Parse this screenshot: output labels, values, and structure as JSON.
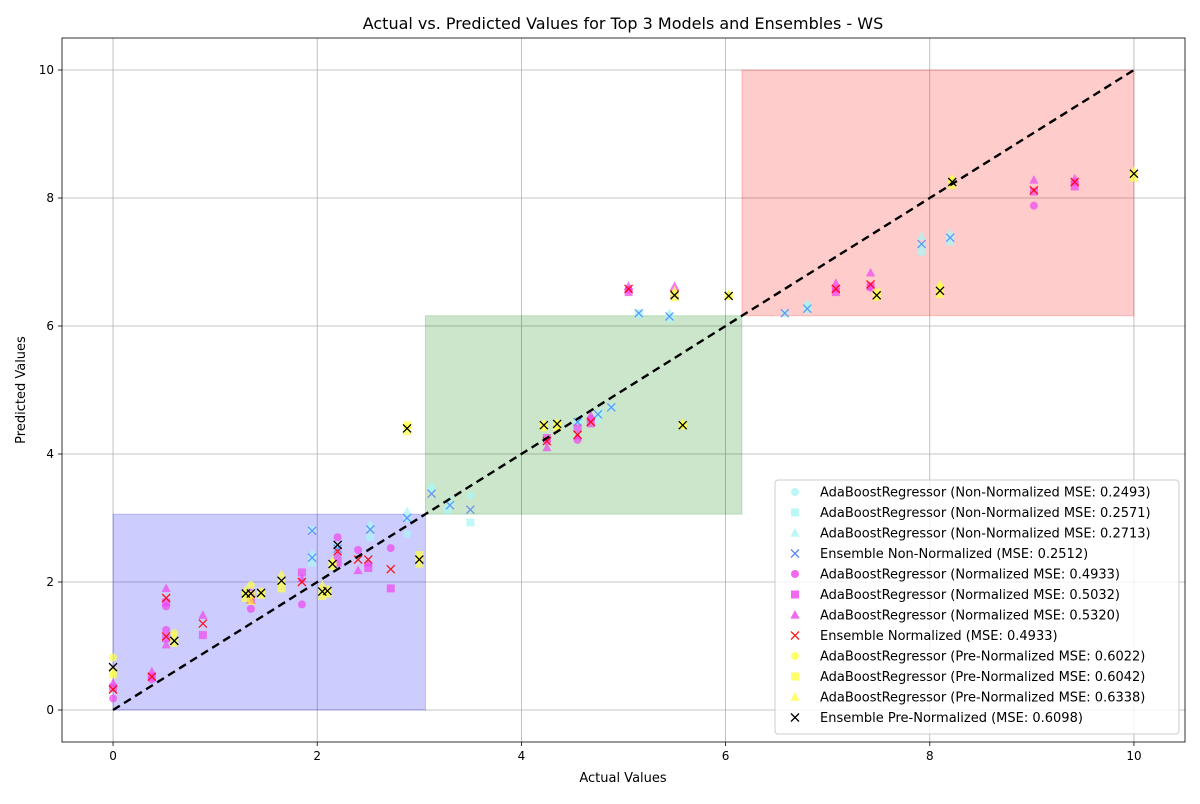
{
  "chart_data": {
    "type": "scatter",
    "title": "Actual vs. Predicted Values for Top 3 Models and Ensembles - WS",
    "xlabel": "Actual Values",
    "ylabel": "Predicted Values",
    "xlim": [
      -0.5,
      10.5
    ],
    "ylim": [
      -0.5,
      10.5
    ],
    "xticks": [
      0,
      2,
      4,
      6,
      8,
      10
    ],
    "yticks": [
      0,
      2,
      4,
      6,
      8,
      10
    ],
    "xtick_labels": [
      "0",
      "2",
      "4",
      "6",
      "8",
      "10"
    ],
    "ytick_labels": [
      "0",
      "2",
      "4",
      "6",
      "8",
      "10"
    ],
    "grid": true,
    "legend_position": "lower-right",
    "reference_line": {
      "style": "dashed",
      "color": "#000000",
      "from": [
        0,
        0
      ],
      "to": [
        10,
        10
      ]
    },
    "regions": [
      {
        "x": [
          0,
          3.06
        ],
        "y": [
          0,
          3.06
        ],
        "color": "#0000ff",
        "opacity": 0.2
      },
      {
        "x": [
          3.06,
          6.16
        ],
        "y": [
          3.06,
          6.16
        ],
        "color": "#008000",
        "opacity": 0.2
      },
      {
        "x": [
          6.16,
          10
        ],
        "y": [
          6.16,
          10
        ],
        "color": "#ff0000",
        "opacity": 0.2
      }
    ],
    "series": [
      {
        "name": "AdaBoostRegressor (Non-Normalized MSE: 0.2493)",
        "marker": "circle",
        "color": "#aaf5f5",
        "opacity": 0.7,
        "points": [
          [
            1.95,
            2.82
          ],
          [
            1.95,
            2.38
          ],
          [
            2.2,
            2.55
          ],
          [
            2.52,
            2.83
          ],
          [
            2.88,
            2.75
          ],
          [
            3.12,
            3.45
          ],
          [
            3.3,
            3.2
          ],
          [
            3.5,
            3.35
          ],
          [
            4.55,
            4.5
          ],
          [
            4.75,
            4.6
          ],
          [
            4.88,
            4.73
          ],
          [
            5.15,
            6.2
          ],
          [
            5.45,
            6.15
          ],
          [
            6.58,
            6.2
          ],
          [
            6.8,
            6.25
          ],
          [
            7.92,
            7.15
          ],
          [
            8.2,
            7.38
          ]
        ]
      },
      {
        "name": "AdaBoostRegressor (Non-Normalized MSE: 0.2571)",
        "marker": "square",
        "color": "#aaf5f5",
        "opacity": 0.7,
        "points": [
          [
            1.95,
            2.3
          ],
          [
            2.52,
            2.7
          ],
          [
            2.88,
            3.0
          ],
          [
            3.28,
            3.12
          ],
          [
            3.5,
            2.93
          ],
          [
            4.55,
            4.45
          ],
          [
            4.75,
            4.55
          ],
          [
            5.15,
            6.18
          ],
          [
            5.45,
            6.12
          ],
          [
            6.8,
            6.3
          ],
          [
            7.92,
            7.25
          ],
          [
            8.2,
            7.32
          ]
        ]
      },
      {
        "name": "AdaBoostRegressor (Non-Normalized MSE: 0.2713)",
        "marker": "triangle",
        "color": "#aaf5f5",
        "opacity": 0.7,
        "points": [
          [
            1.95,
            2.45
          ],
          [
            2.2,
            2.42
          ],
          [
            2.52,
            2.9
          ],
          [
            2.88,
            3.1
          ],
          [
            3.12,
            3.5
          ],
          [
            3.3,
            3.28
          ],
          [
            4.58,
            4.55
          ],
          [
            4.78,
            4.68
          ],
          [
            5.45,
            6.2
          ],
          [
            6.8,
            6.35
          ],
          [
            7.92,
            7.4
          ],
          [
            8.2,
            7.45
          ]
        ]
      },
      {
        "name": "Ensemble Non-Normalized (MSE: 0.2512)",
        "marker": "x",
        "color": "#3366ff",
        "opacity": 0.65,
        "points": [
          [
            1.95,
            2.8
          ],
          [
            1.95,
            2.38
          ],
          [
            2.2,
            2.52
          ],
          [
            2.52,
            2.82
          ],
          [
            2.88,
            3.0
          ],
          [
            3.12,
            3.38
          ],
          [
            3.3,
            3.2
          ],
          [
            3.5,
            3.13
          ],
          [
            4.55,
            4.5
          ],
          [
            4.75,
            4.62
          ],
          [
            4.88,
            4.73
          ],
          [
            5.15,
            6.2
          ],
          [
            5.45,
            6.15
          ],
          [
            6.58,
            6.2
          ],
          [
            6.8,
            6.27
          ],
          [
            7.92,
            7.28
          ],
          [
            8.2,
            7.38
          ]
        ]
      },
      {
        "name": "AdaBoostRegressor (Normalized MSE: 0.4933)",
        "marker": "circle",
        "color": "#ee44ee",
        "opacity": 0.7,
        "points": [
          [
            0,
            0.18
          ],
          [
            0.38,
            0.48
          ],
          [
            0.52,
            1.62
          ],
          [
            0.52,
            1.25
          ],
          [
            1.35,
            1.58
          ],
          [
            1.85,
            1.65
          ],
          [
            2.2,
            2.7
          ],
          [
            2.4,
            2.5
          ],
          [
            2.72,
            2.53
          ],
          [
            4.25,
            4.2
          ],
          [
            4.55,
            4.22
          ],
          [
            4.68,
            4.55
          ],
          [
            5.05,
            6.57
          ],
          [
            7.08,
            6.58
          ],
          [
            7.42,
            6.6
          ],
          [
            9.02,
            7.88
          ],
          [
            9.42,
            8.25
          ]
        ]
      },
      {
        "name": "AdaBoostRegressor (Normalized MSE: 0.5032)",
        "marker": "square",
        "color": "#ee44ee",
        "opacity": 0.7,
        "points": [
          [
            0,
            0.35
          ],
          [
            0.38,
            0.52
          ],
          [
            0.52,
            1.68
          ],
          [
            0.52,
            1.12
          ],
          [
            0.88,
            1.17
          ],
          [
            1.35,
            1.72
          ],
          [
            1.85,
            2.15
          ],
          [
            2.2,
            2.3
          ],
          [
            2.5,
            2.22
          ],
          [
            2.72,
            1.9
          ],
          [
            4.25,
            4.25
          ],
          [
            4.55,
            4.4
          ],
          [
            4.68,
            4.48
          ],
          [
            5.05,
            6.53
          ],
          [
            5.5,
            6.5
          ],
          [
            7.08,
            6.53
          ],
          [
            7.42,
            6.62
          ],
          [
            9.02,
            8.1
          ],
          [
            9.42,
            8.18
          ]
        ]
      },
      {
        "name": "AdaBoostRegressor (Normalized MSE: 0.5320)",
        "marker": "triangle",
        "color": "#ee44ee",
        "opacity": 0.7,
        "points": [
          [
            0,
            0.42
          ],
          [
            0.38,
            0.6
          ],
          [
            0.52,
            1.9
          ],
          [
            0.52,
            1.02
          ],
          [
            0.88,
            1.48
          ],
          [
            1.35,
            1.85
          ],
          [
            1.85,
            2.05
          ],
          [
            2.2,
            2.42
          ],
          [
            2.4,
            2.18
          ],
          [
            2.5,
            2.3
          ],
          [
            4.25,
            4.1
          ],
          [
            4.55,
            4.28
          ],
          [
            4.68,
            4.6
          ],
          [
            5.05,
            6.62
          ],
          [
            5.5,
            6.62
          ],
          [
            7.08,
            6.67
          ],
          [
            7.42,
            6.83
          ],
          [
            9.02,
            8.28
          ],
          [
            9.42,
            8.3
          ]
        ]
      },
      {
        "name": "Ensemble Normalized (MSE: 0.4933)",
        "marker": "x",
        "color": "#ff0000",
        "opacity": 0.9,
        "points": [
          [
            0,
            0.32
          ],
          [
            0.38,
            0.52
          ],
          [
            0.52,
            1.75
          ],
          [
            0.52,
            1.15
          ],
          [
            0.88,
            1.35
          ],
          [
            1.35,
            1.72
          ],
          [
            1.85,
            2.0
          ],
          [
            2.2,
            2.48
          ],
          [
            2.4,
            2.35
          ],
          [
            2.5,
            2.35
          ],
          [
            2.72,
            2.2
          ],
          [
            4.25,
            4.2
          ],
          [
            4.55,
            4.3
          ],
          [
            4.68,
            4.5
          ],
          [
            5.05,
            6.58
          ],
          [
            5.5,
            6.5
          ],
          [
            7.08,
            6.58
          ],
          [
            7.42,
            6.65
          ],
          [
            9.02,
            8.12
          ],
          [
            9.42,
            8.25
          ]
        ]
      },
      {
        "name": "AdaBoostRegressor (Pre-Normalized MSE: 0.6022)",
        "marker": "circle",
        "color": "#ffff44",
        "opacity": 0.7,
        "points": [
          [
            0,
            0.82
          ],
          [
            0.6,
            1.2
          ],
          [
            1.3,
            1.82
          ],
          [
            1.35,
            1.95
          ],
          [
            1.45,
            1.85
          ],
          [
            1.65,
            2.0
          ],
          [
            2.05,
            1.85
          ],
          [
            2.1,
            1.88
          ],
          [
            2.15,
            2.3
          ],
          [
            3.0,
            2.35
          ],
          [
            2.88,
            4.42
          ],
          [
            4.22,
            4.45
          ],
          [
            4.35,
            4.48
          ],
          [
            5.5,
            6.5
          ],
          [
            5.58,
            4.45
          ],
          [
            6.03,
            6.47
          ],
          [
            7.48,
            6.48
          ],
          [
            8.1,
            6.6
          ],
          [
            8.22,
            8.28
          ],
          [
            10,
            8.38
          ]
        ]
      },
      {
        "name": "AdaBoostRegressor (Pre-Normalized MSE: 0.6042)",
        "marker": "square",
        "color": "#ffff44",
        "opacity": 0.7,
        "points": [
          [
            0,
            0.6
          ],
          [
            0.6,
            1.05
          ],
          [
            1.3,
            1.75
          ],
          [
            1.35,
            1.8
          ],
          [
            1.45,
            1.8
          ],
          [
            1.65,
            1.9
          ],
          [
            2.05,
            1.78
          ],
          [
            2.1,
            1.82
          ],
          [
            2.15,
            2.25
          ],
          [
            3.0,
            2.42
          ],
          [
            2.88,
            4.45
          ],
          [
            4.22,
            4.42
          ],
          [
            4.35,
            4.45
          ],
          [
            5.5,
            6.45
          ],
          [
            5.58,
            4.45
          ],
          [
            6.03,
            6.47
          ],
          [
            7.48,
            6.52
          ],
          [
            8.1,
            6.5
          ],
          [
            8.22,
            8.2
          ],
          [
            10,
            8.32
          ]
        ]
      },
      {
        "name": "AdaBoostRegressor (Pre-Normalized MSE: 0.6338)",
        "marker": "triangle",
        "color": "#ffff44",
        "opacity": 0.7,
        "points": [
          [
            0,
            0.55
          ],
          [
            0.6,
            1.15
          ],
          [
            1.3,
            1.88
          ],
          [
            1.35,
            1.7
          ],
          [
            1.45,
            1.82
          ],
          [
            1.65,
            2.12
          ],
          [
            2.05,
            1.95
          ],
          [
            2.1,
            1.85
          ],
          [
            2.15,
            2.32
          ],
          [
            3.0,
            2.28
          ],
          [
            2.88,
            4.35
          ],
          [
            4.22,
            4.48
          ],
          [
            4.35,
            4.42
          ],
          [
            5.5,
            6.55
          ],
          [
            5.58,
            4.48
          ],
          [
            6.03,
            6.5
          ],
          [
            7.48,
            6.45
          ],
          [
            8.1,
            6.65
          ],
          [
            8.22,
            8.3
          ],
          [
            10,
            8.42
          ]
        ]
      },
      {
        "name": "Ensemble Pre-Normalized (MSE: 0.6098)",
        "marker": "x",
        "color": "#000000",
        "opacity": 1.0,
        "points": [
          [
            0,
            0.67
          ],
          [
            0.6,
            1.08
          ],
          [
            1.3,
            1.82
          ],
          [
            1.35,
            1.82
          ],
          [
            1.45,
            1.83
          ],
          [
            1.65,
            2.02
          ],
          [
            2.05,
            1.85
          ],
          [
            2.1,
            1.86
          ],
          [
            2.15,
            2.28
          ],
          [
            2.2,
            2.58
          ],
          [
            3.0,
            2.35
          ],
          [
            2.88,
            4.4
          ],
          [
            4.22,
            4.45
          ],
          [
            4.35,
            4.47
          ],
          [
            5.5,
            6.48
          ],
          [
            5.58,
            4.45
          ],
          [
            6.03,
            6.47
          ],
          [
            7.48,
            6.48
          ],
          [
            8.1,
            6.55
          ],
          [
            8.22,
            8.25
          ],
          [
            10,
            8.38
          ]
        ]
      }
    ]
  }
}
